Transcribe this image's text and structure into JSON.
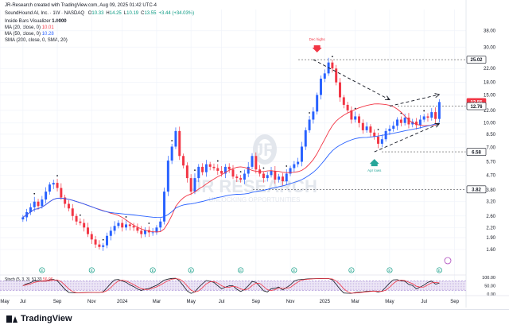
{
  "header": {
    "credit": "JR-Research created with TradingView.com, Aug 09, 2025 01:42 UTC-4",
    "symbol_line_prefix": "SoundHound AI, Inc. · 1W · NASDAQ",
    "ohlc": [
      {
        "label": "O",
        "value": "10.33"
      },
      {
        "label": "H",
        "value": "14.25"
      },
      {
        "label": "L",
        "value": "10.19"
      },
      {
        "label": "C",
        "value": "13.55"
      },
      {
        "label": "",
        "value": "+3.44 (+34.03%)"
      }
    ],
    "indicators": [
      {
        "label": "Inside Bars Visualizer",
        "value": "1.0000",
        "color": "#131722"
      },
      {
        "label": "MA (20, close, 0)",
        "value": "10.01",
        "color": "#f23645"
      },
      {
        "label": "MA (50, close, 0)",
        "value": "10.28",
        "color": "#2962ff"
      },
      {
        "label": "SMA (200, close, 0, SMA, 20)",
        "value": "",
        "color": "#131722"
      }
    ]
  },
  "watermark": {
    "logo": "JR",
    "name": "JR RESEARCH",
    "tagline": "UNLOCKING OPPORTUNITIES"
  },
  "chart_data": {
    "type": "candlestick",
    "scale": "log",
    "ylim": [
      1.3,
      44
    ],
    "y_ticks": [
      38.0,
      30.0,
      22.0,
      18.0,
      15.0,
      12.0,
      10.0,
      8.5,
      7.0,
      5.7,
      4.7,
      3.8,
      3.2,
      2.6,
      2.2,
      1.9,
      1.6
    ],
    "y_tick_labels": [
      "38.00",
      "30.00",
      "22.00",
      "18.00",
      "15.00",
      "12.00",
      "10.00",
      "8.50",
      "7.00",
      "5.70",
      "4.70",
      "3.80",
      "3.20",
      "2.60",
      "2.20",
      "1.90",
      "1.60"
    ],
    "x_range": [
      "2023-05-22",
      "2025-09-22"
    ],
    "x_ticks": [
      {
        "date": "2023-05-22",
        "label": "May"
      },
      {
        "date": "2023-07-03",
        "label": "Jul"
      },
      {
        "date": "2023-09-04",
        "label": "Sep"
      },
      {
        "date": "2023-11-06",
        "label": "Nov"
      },
      {
        "date": "2024-01-01",
        "label": "2024"
      },
      {
        "date": "2024-03-04",
        "label": "Mar"
      },
      {
        "date": "2024-05-06",
        "label": "May"
      },
      {
        "date": "2024-07-01",
        "label": "Jul"
      },
      {
        "date": "2024-09-02",
        "label": "Sep"
      },
      {
        "date": "2024-11-04",
        "label": "Nov"
      },
      {
        "date": "2025-01-06",
        "label": "2025"
      },
      {
        "date": "2025-03-03",
        "label": "Mar"
      },
      {
        "date": "2025-05-05",
        "label": "May"
      },
      {
        "date": "2025-07-07",
        "label": "Jul"
      },
      {
        "date": "2025-09-01",
        "label": "Sep"
      }
    ],
    "price_labels": [
      {
        "value": 25.02,
        "label": "25.02",
        "style": "box"
      },
      {
        "value": 13.55,
        "label": "13.55",
        "style": "red"
      },
      {
        "value": 12.76,
        "label": "12.76",
        "style": "box"
      },
      {
        "value": 6.58,
        "label": "6.58",
        "style": "box"
      },
      {
        "value": 3.82,
        "label": "3.82",
        "style": "box"
      }
    ],
    "horizontal_levels": [
      25.02,
      12.76,
      6.58,
      3.82
    ],
    "annotations": [
      {
        "text": "Dec highs",
        "date": "2024-12-23",
        "price": 25.02,
        "color": "#f23645",
        "position": "above"
      },
      {
        "text": "Apr lows",
        "date": "2025-04-07",
        "price": 6.58,
        "color": "#26a69a",
        "position": "below"
      }
    ],
    "trend_lines": [
      {
        "from": [
          "2024-12-16",
          25.02
        ],
        "to": [
          "2025-05-05",
          14.0
        ]
      },
      {
        "from": [
          "2025-04-07",
          6.58
        ],
        "to": [
          "2025-08-04",
          9.9
        ]
      },
      {
        "from": [
          "2025-05-05",
          12.76
        ],
        "to": [
          "2025-08-04",
          15.1
        ]
      }
    ],
    "earnings_dates": [
      "2023-05-08",
      "2023-08-07",
      "2023-11-06",
      "2024-02-26",
      "2024-05-06",
      "2024-08-05",
      "2024-11-11",
      "2025-02-24",
      "2025-05-05",
      "2025-08-04"
    ],
    "weekly_close": [
      2.55,
      2.75,
      2.95,
      3.2,
      3.0,
      3.3,
      3.7,
      4.1,
      4.2,
      3.9,
      3.4,
      3.1,
      2.9,
      2.6,
      2.4,
      2.35,
      2.2,
      2.0,
      1.85,
      1.72,
      1.66,
      1.7,
      1.95,
      2.1,
      2.25,
      2.35,
      2.2,
      2.3,
      2.25,
      2.2,
      2.1,
      2.0,
      2.12,
      2.05,
      2.05,
      2.2,
      2.4,
      3.7,
      5.8,
      7.1,
      8.9,
      6.2,
      5.4,
      4.5,
      3.7,
      4.5,
      5.3,
      4.9,
      5.5,
      5.3,
      5.2,
      5.0,
      4.8,
      5.3,
      5.1,
      4.6,
      4.5,
      4.4,
      4.8,
      5.3,
      6.2,
      5.1,
      4.8,
      4.5,
      4.7,
      5.0,
      4.4,
      4.6,
      4.3,
      4.8,
      5.2,
      5.5,
      5.7,
      7.1,
      9.0,
      10.5,
      11.8,
      15.0,
      19.0,
      20.5,
      24.0,
      22.0,
      18.0,
      14.5,
      13.0,
      12.0,
      10.5,
      11.0,
      10.0,
      9.0,
      9.5,
      8.7,
      8.2,
      7.4,
      7.9,
      8.9,
      9.2,
      9.6,
      10.5,
      10.0,
      10.8,
      9.8,
      10.2,
      9.7,
      10.5,
      11.0,
      10.8,
      11.7,
      10.6,
      13.55
    ],
    "stochastic": {
      "label": "Stoch (5, 3, 3)",
      "k_value": 51.33,
      "d_value": 56.96,
      "k_label": "51.33",
      "d_label": "56.96",
      "ylim": [
        0,
        100
      ],
      "ticks": [
        100,
        50,
        0
      ],
      "tick_labels": [
        "100.00",
        "50.00",
        "0.00"
      ],
      "band": [
        20,
        80
      ]
    }
  },
  "footer": {
    "brand": "TradingView"
  }
}
